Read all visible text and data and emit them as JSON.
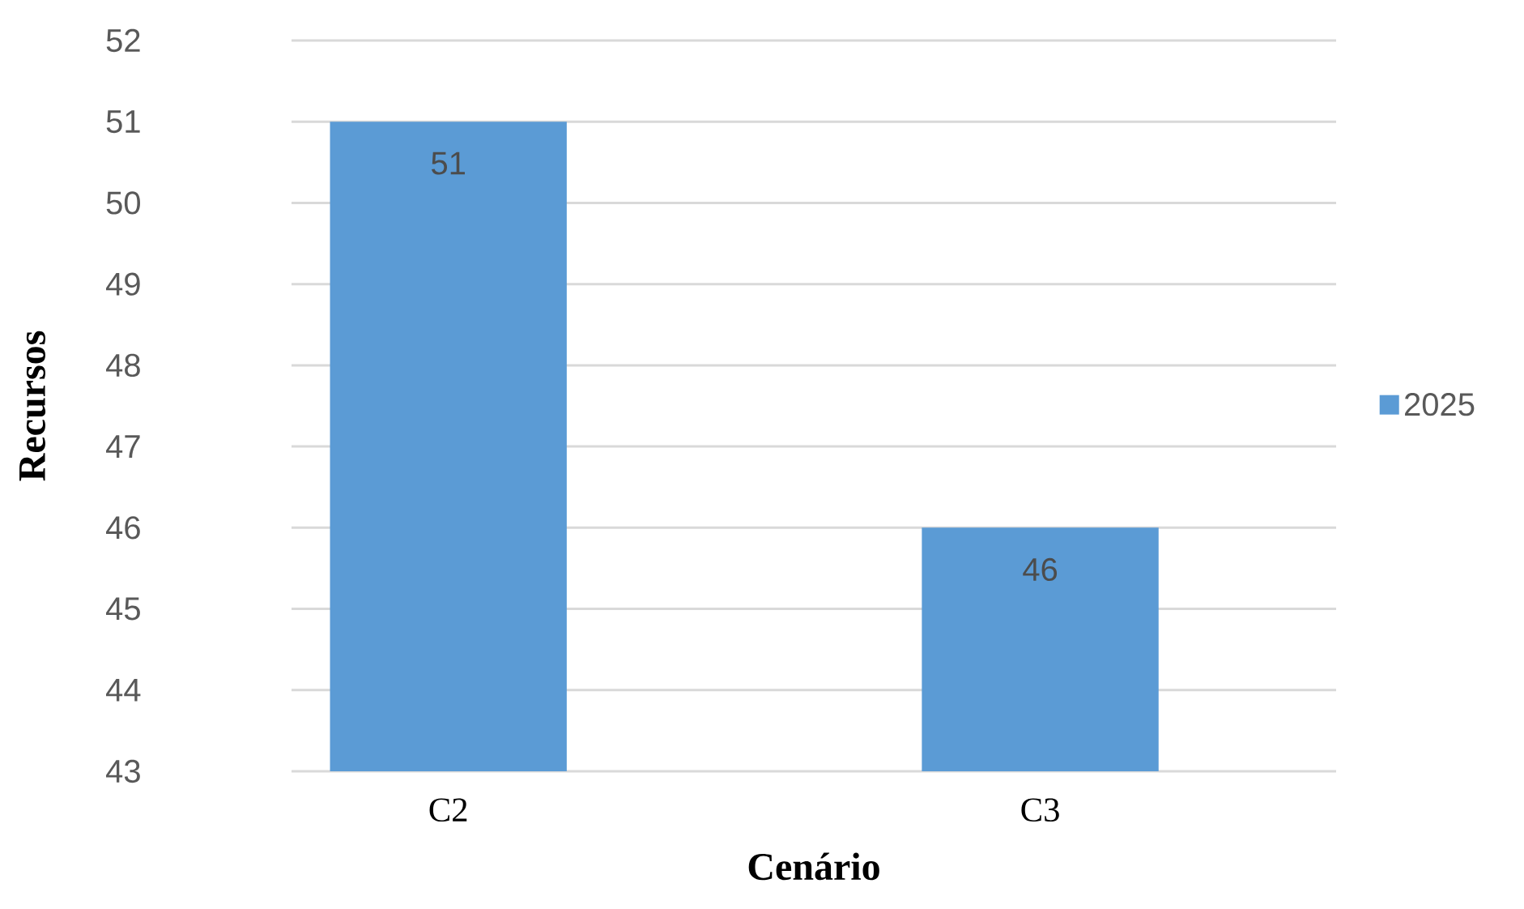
{
  "chart_data": {
    "type": "bar",
    "xlabel": "Cenário",
    "ylabel": "Recursos",
    "categories": [
      "C2",
      "C3"
    ],
    "series": [
      {
        "name": "2025",
        "color": "#5b9bd5",
        "values": [
          51,
          46
        ]
      }
    ],
    "ylim": [
      43,
      52
    ],
    "yticks": [
      43,
      44,
      45,
      46,
      47,
      48,
      49,
      50,
      51,
      52
    ],
    "grid": "y",
    "legend": "right",
    "data_labels": true
  }
}
